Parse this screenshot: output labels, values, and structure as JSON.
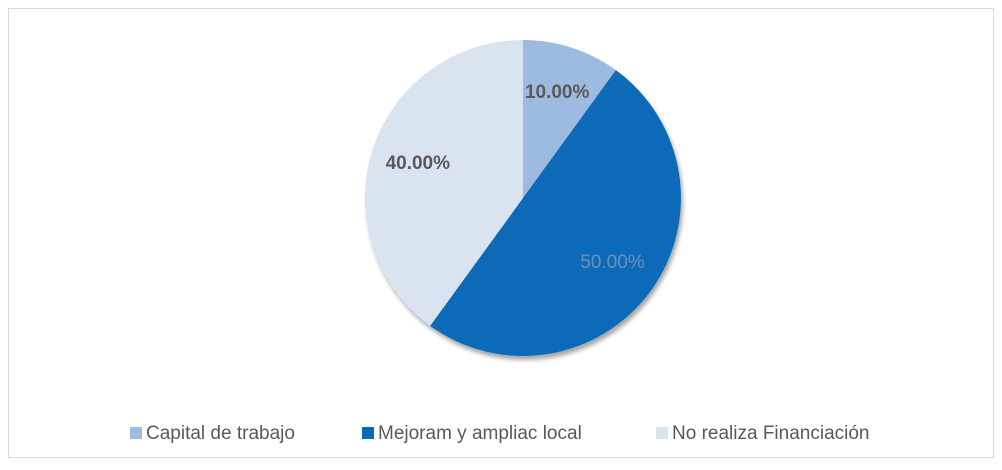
{
  "chart_data": {
    "type": "pie",
    "categories": [
      "Capital de trabajo",
      "Mejoram y ampliac local",
      "No realiza Financiación"
    ],
    "values": [
      10,
      50,
      40
    ],
    "value_labels": [
      "10.00%",
      "50.00%",
      "40.00%"
    ],
    "colors": [
      "#9dbbe0",
      "#0a6ab8",
      "#dae3f0"
    ],
    "legend": "bottom"
  }
}
